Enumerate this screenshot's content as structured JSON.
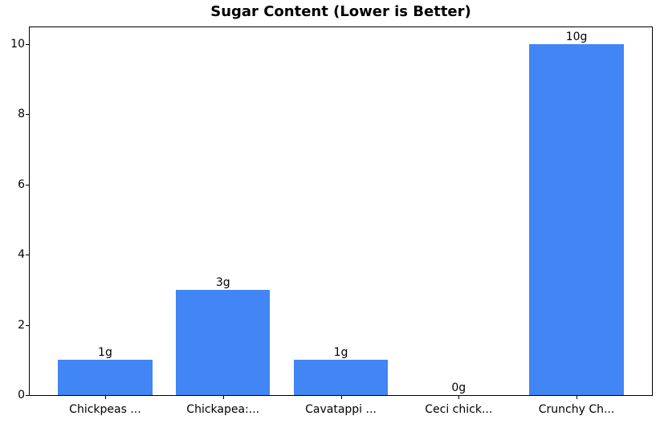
{
  "chart_data": {
    "type": "bar",
    "title": "Sugar Content (Lower is Better)",
    "categories": [
      "Chickpeas ...",
      "Chickapea:...",
      "Cavatappi ...",
      "Ceci chick...",
      "Crunchy Ch..."
    ],
    "values": [
      1,
      3,
      1,
      0,
      10
    ],
    "bar_labels": [
      "1g",
      "3g",
      "1g",
      "0g",
      "10g"
    ],
    "xlabel": "",
    "ylabel": "",
    "yticks": [
      0,
      2,
      4,
      6,
      8,
      10
    ],
    "ylim": [
      0,
      10.5
    ],
    "bar_color": "#4285F4",
    "axis_color": "#000000",
    "background_color": "#FFFFFF",
    "grid": false,
    "legend": null
  }
}
